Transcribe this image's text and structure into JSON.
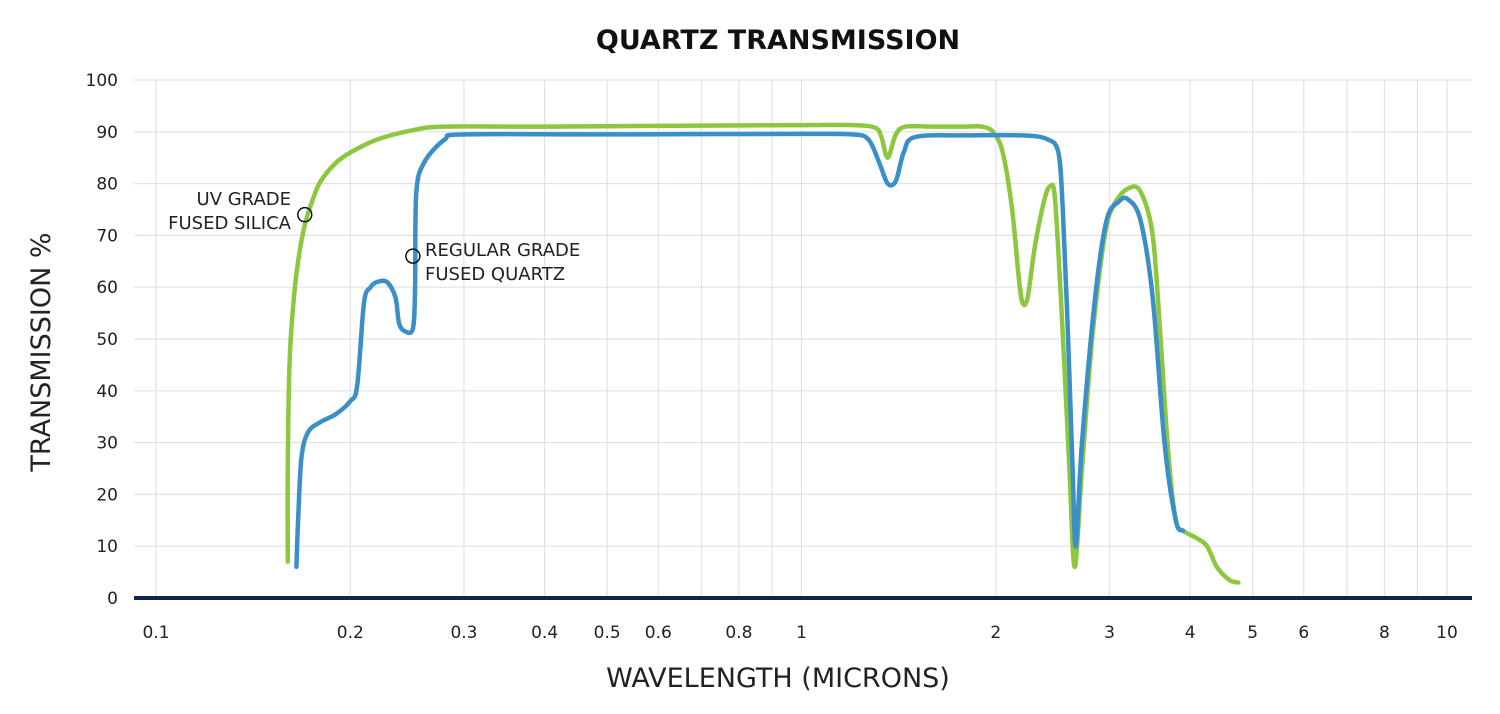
{
  "chart_data": {
    "type": "line",
    "title": "QUARTZ TRANSMISSION",
    "xlabel": "WAVELENGTH (MICRONS)",
    "ylabel": "TRANSMISSION %",
    "x_scale": "log",
    "xlim": [
      0.1,
      10
    ],
    "ylim": [
      0,
      100
    ],
    "grid": true,
    "x_ticks": [
      {
        "value": 0.1,
        "label": "0.1"
      },
      {
        "value": 0.2,
        "label": "0.2"
      },
      {
        "value": 0.3,
        "label": "0.3"
      },
      {
        "value": 0.4,
        "label": "0.4"
      },
      {
        "value": 0.5,
        "label": "0.5"
      },
      {
        "value": 0.6,
        "label": "0.6"
      },
      {
        "value": 0.8,
        "label": "0.8"
      },
      {
        "value": 1,
        "label": "1"
      },
      {
        "value": 2,
        "label": "2"
      },
      {
        "value": 3,
        "label": "3"
      },
      {
        "value": 4,
        "label": "4"
      },
      {
        "value": 5,
        "label": "5"
      },
      {
        "value": 6,
        "label": "6"
      },
      {
        "value": 8,
        "label": "8"
      },
      {
        "value": 10,
        "label": "10"
      }
    ],
    "x_grid": [
      0.1,
      0.2,
      0.3,
      0.4,
      0.5,
      0.6,
      0.7,
      0.8,
      0.9,
      1,
      2,
      3,
      4,
      5,
      6,
      7,
      8,
      9,
      10
    ],
    "y_ticks": [
      0,
      10,
      20,
      30,
      40,
      50,
      60,
      70,
      80,
      90,
      100
    ],
    "series": [
      {
        "name": "UV GRADE FUSED SILICA",
        "label_lines": [
          "UV GRADE",
          "FUSED SILICA"
        ],
        "marker": {
          "x": 0.17,
          "y": 74
        },
        "color": "#8dc63f",
        "points": [
          [
            0.16,
            7
          ],
          [
            0.16,
            25
          ],
          [
            0.161,
            45
          ],
          [
            0.163,
            56
          ],
          [
            0.166,
            65
          ],
          [
            0.17,
            72
          ],
          [
            0.175,
            77
          ],
          [
            0.18,
            80.5
          ],
          [
            0.19,
            84
          ],
          [
            0.2,
            86
          ],
          [
            0.22,
            88.5
          ],
          [
            0.25,
            90.3
          ],
          [
            0.28,
            91
          ],
          [
            0.4,
            91
          ],
          [
            0.7,
            91.2
          ],
          [
            1.0,
            91.3
          ],
          [
            1.2,
            91.3
          ],
          [
            1.3,
            90.8
          ],
          [
            1.33,
            89
          ],
          [
            1.36,
            85
          ],
          [
            1.4,
            89.5
          ],
          [
            1.45,
            91
          ],
          [
            1.6,
            91
          ],
          [
            1.8,
            91
          ],
          [
            1.9,
            91
          ],
          [
            1.98,
            90
          ],
          [
            2.05,
            86
          ],
          [
            2.12,
            75
          ],
          [
            2.17,
            62
          ],
          [
            2.2,
            57
          ],
          [
            2.24,
            58
          ],
          [
            2.3,
            68
          ],
          [
            2.38,
            77
          ],
          [
            2.43,
            79.5
          ],
          [
            2.47,
            77
          ],
          [
            2.53,
            55
          ],
          [
            2.6,
            25
          ],
          [
            2.65,
            6
          ],
          [
            2.72,
            25
          ],
          [
            2.82,
            50
          ],
          [
            2.95,
            70
          ],
          [
            3.05,
            76
          ],
          [
            3.2,
            79
          ],
          [
            3.35,
            78.5
          ],
          [
            3.5,
            70
          ],
          [
            3.6,
            50
          ],
          [
            3.7,
            28
          ],
          [
            3.8,
            15
          ],
          [
            3.9,
            13
          ],
          [
            4.1,
            11.5
          ],
          [
            4.25,
            10
          ],
          [
            4.4,
            6
          ],
          [
            4.6,
            3.5
          ],
          [
            4.75,
            3
          ]
        ]
      },
      {
        "name": "REGULAR GRADE FUSED QUARTZ",
        "label_lines": [
          "REGULAR GRADE",
          "FUSED QUARTZ"
        ],
        "marker": {
          "x": 0.25,
          "y": 66
        },
        "color": "#3b8fc7",
        "points": [
          [
            0.165,
            6
          ],
          [
            0.166,
            15
          ],
          [
            0.168,
            27
          ],
          [
            0.172,
            32
          ],
          [
            0.18,
            34
          ],
          [
            0.19,
            35.5
          ],
          [
            0.2,
            38
          ],
          [
            0.205,
            41
          ],
          [
            0.21,
            57
          ],
          [
            0.215,
            60
          ],
          [
            0.22,
            61
          ],
          [
            0.228,
            61
          ],
          [
            0.235,
            58
          ],
          [
            0.238,
            53
          ],
          [
            0.243,
            51.5
          ],
          [
            0.25,
            52
          ],
          [
            0.252,
            60
          ],
          [
            0.253,
            78
          ],
          [
            0.26,
            84
          ],
          [
            0.28,
            88.5
          ],
          [
            0.3,
            89.5
          ],
          [
            0.5,
            89.5
          ],
          [
            1.0,
            89.6
          ],
          [
            1.2,
            89.5
          ],
          [
            1.27,
            88.5
          ],
          [
            1.32,
            84
          ],
          [
            1.36,
            80
          ],
          [
            1.4,
            80.5
          ],
          [
            1.44,
            86
          ],
          [
            1.5,
            89
          ],
          [
            1.8,
            89.3
          ],
          [
            2.2,
            89.3
          ],
          [
            2.4,
            88.6
          ],
          [
            2.5,
            86
          ],
          [
            2.54,
            75
          ],
          [
            2.58,
            55
          ],
          [
            2.63,
            25
          ],
          [
            2.66,
            10
          ],
          [
            2.72,
            30
          ],
          [
            2.85,
            58
          ],
          [
            2.97,
            73
          ],
          [
            3.1,
            76.5
          ],
          [
            3.2,
            77
          ],
          [
            3.35,
            73
          ],
          [
            3.5,
            58
          ],
          [
            3.65,
            30
          ],
          [
            3.8,
            15
          ],
          [
            3.9,
            13
          ]
        ]
      }
    ]
  }
}
